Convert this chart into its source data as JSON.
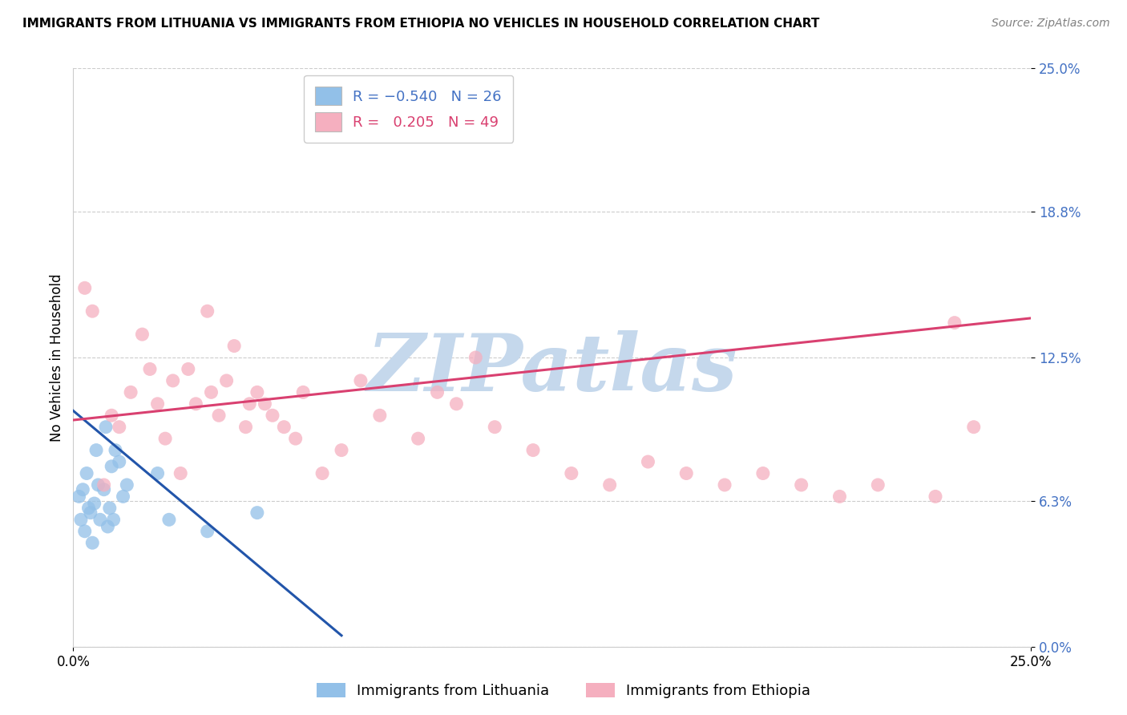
{
  "title": "IMMIGRANTS FROM LITHUANIA VS IMMIGRANTS FROM ETHIOPIA NO VEHICLES IN HOUSEHOLD CORRELATION CHART",
  "source": "Source: ZipAtlas.com",
  "ylabel": "No Vehicles in Household",
  "ytick_values": [
    0.0,
    6.3,
    12.5,
    18.8,
    25.0
  ],
  "ytick_labels": [
    "0.0%",
    "6.3%",
    "12.5%",
    "18.8%",
    "25.0%"
  ],
  "xmin": 0.0,
  "xmax": 25.0,
  "ymin": 0.0,
  "ymax": 25.0,
  "label1": "Immigrants from Lithuania",
  "label2": "Immigrants from Ethiopia",
  "color1": "#92C0E8",
  "color2": "#F5AFBF",
  "line_color1": "#2255AA",
  "line_color2": "#D94070",
  "watermark": "ZIPatlas",
  "watermark_color": "#C5D8EC",
  "blue_x": [
    0.15,
    0.2,
    0.25,
    0.3,
    0.35,
    0.4,
    0.45,
    0.5,
    0.55,
    0.6,
    0.65,
    0.7,
    0.8,
    0.85,
    0.9,
    0.95,
    1.0,
    1.05,
    1.1,
    1.2,
    1.3,
    1.4,
    2.2,
    2.5,
    3.5,
    4.8
  ],
  "blue_y": [
    6.5,
    5.5,
    6.8,
    5.0,
    7.5,
    6.0,
    5.8,
    4.5,
    6.2,
    8.5,
    7.0,
    5.5,
    6.8,
    9.5,
    5.2,
    6.0,
    7.8,
    5.5,
    8.5,
    8.0,
    6.5,
    7.0,
    7.5,
    5.5,
    5.0,
    5.8
  ],
  "pink_x": [
    0.3,
    0.5,
    0.8,
    1.0,
    1.2,
    1.5,
    1.8,
    2.0,
    2.2,
    2.4,
    2.6,
    2.8,
    3.0,
    3.2,
    3.5,
    3.8,
    4.0,
    4.2,
    4.5,
    4.8,
    5.0,
    5.5,
    6.0,
    7.0,
    8.0,
    9.0,
    9.5,
    10.0,
    11.0,
    12.0,
    13.0,
    14.0,
    15.0,
    16.0,
    17.0,
    18.0,
    19.0,
    20.0,
    21.0,
    22.5,
    23.0,
    23.5,
    10.5,
    7.5,
    6.5,
    5.8,
    5.2,
    4.6,
    3.6
  ],
  "pink_y": [
    15.5,
    14.5,
    7.0,
    10.0,
    9.5,
    11.0,
    13.5,
    12.0,
    10.5,
    9.0,
    11.5,
    7.5,
    12.0,
    10.5,
    14.5,
    10.0,
    11.5,
    13.0,
    9.5,
    11.0,
    10.5,
    9.5,
    11.0,
    8.5,
    10.0,
    9.0,
    11.0,
    10.5,
    9.5,
    8.5,
    7.5,
    7.0,
    8.0,
    7.5,
    7.0,
    7.5,
    7.0,
    6.5,
    7.0,
    6.5,
    14.0,
    9.5,
    12.5,
    11.5,
    7.5,
    9.0,
    10.0,
    10.5,
    11.0
  ],
  "blue_line_x": [
    0.0,
    7.0
  ],
  "blue_line_y": [
    10.2,
    0.5
  ],
  "pink_line_x": [
    0.0,
    25.0
  ],
  "pink_line_y": [
    9.8,
    14.2
  ]
}
